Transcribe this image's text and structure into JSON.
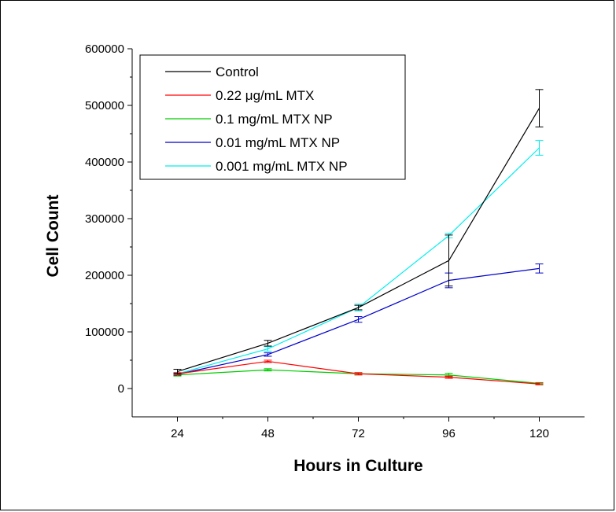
{
  "chart_data": {
    "type": "line",
    "xlabel": "Hours in Culture",
    "ylabel": "Cell Count",
    "categories": [
      "24",
      "48",
      "72",
      "96",
      "120"
    ],
    "x": [
      24,
      48,
      72,
      96,
      120
    ],
    "xlim": [
      12,
      132
    ],
    "ylim": [
      -50000,
      600000
    ],
    "yticks": [
      0,
      100000,
      200000,
      300000,
      400000,
      500000,
      600000
    ],
    "ytick_labels": [
      "0",
      "100000",
      "200000",
      "300000",
      "400000",
      "500000",
      "600000"
    ],
    "grid": false,
    "legend_position": "top-left",
    "series": [
      {
        "name": "Control",
        "color": "#000000",
        "values": [
          30000,
          80000,
          143000,
          226000,
          495000
        ],
        "errors": [
          4000,
          5000,
          4000,
          45000,
          33000
        ]
      },
      {
        "name": "0.22 μg/mL MTX",
        "color": "#ff0000",
        "values": [
          26000,
          48000,
          26000,
          20000,
          8000
        ],
        "errors": [
          2000,
          2000,
          2000,
          2000,
          1500
        ]
      },
      {
        "name": "0.1 mg/mL MTX NP",
        "color": "#00cc00",
        "values": [
          24000,
          33000,
          26000,
          24000,
          9000
        ],
        "errors": [
          2000,
          2000,
          2000,
          3000,
          1500
        ]
      },
      {
        "name": "0.01 mg/mL MTX NP",
        "color": "#0000cc",
        "values": [
          25000,
          60000,
          122000,
          191000,
          212000
        ],
        "errors": [
          2000,
          3000,
          5000,
          13000,
          8000
        ]
      },
      {
        "name": "0.001 mg/mL MTX NP",
        "color": "#00eeee",
        "values": [
          26000,
          70000,
          143000,
          270000,
          425000
        ],
        "errors": [
          2000,
          4000,
          6000,
          4000,
          13000
        ]
      }
    ]
  }
}
